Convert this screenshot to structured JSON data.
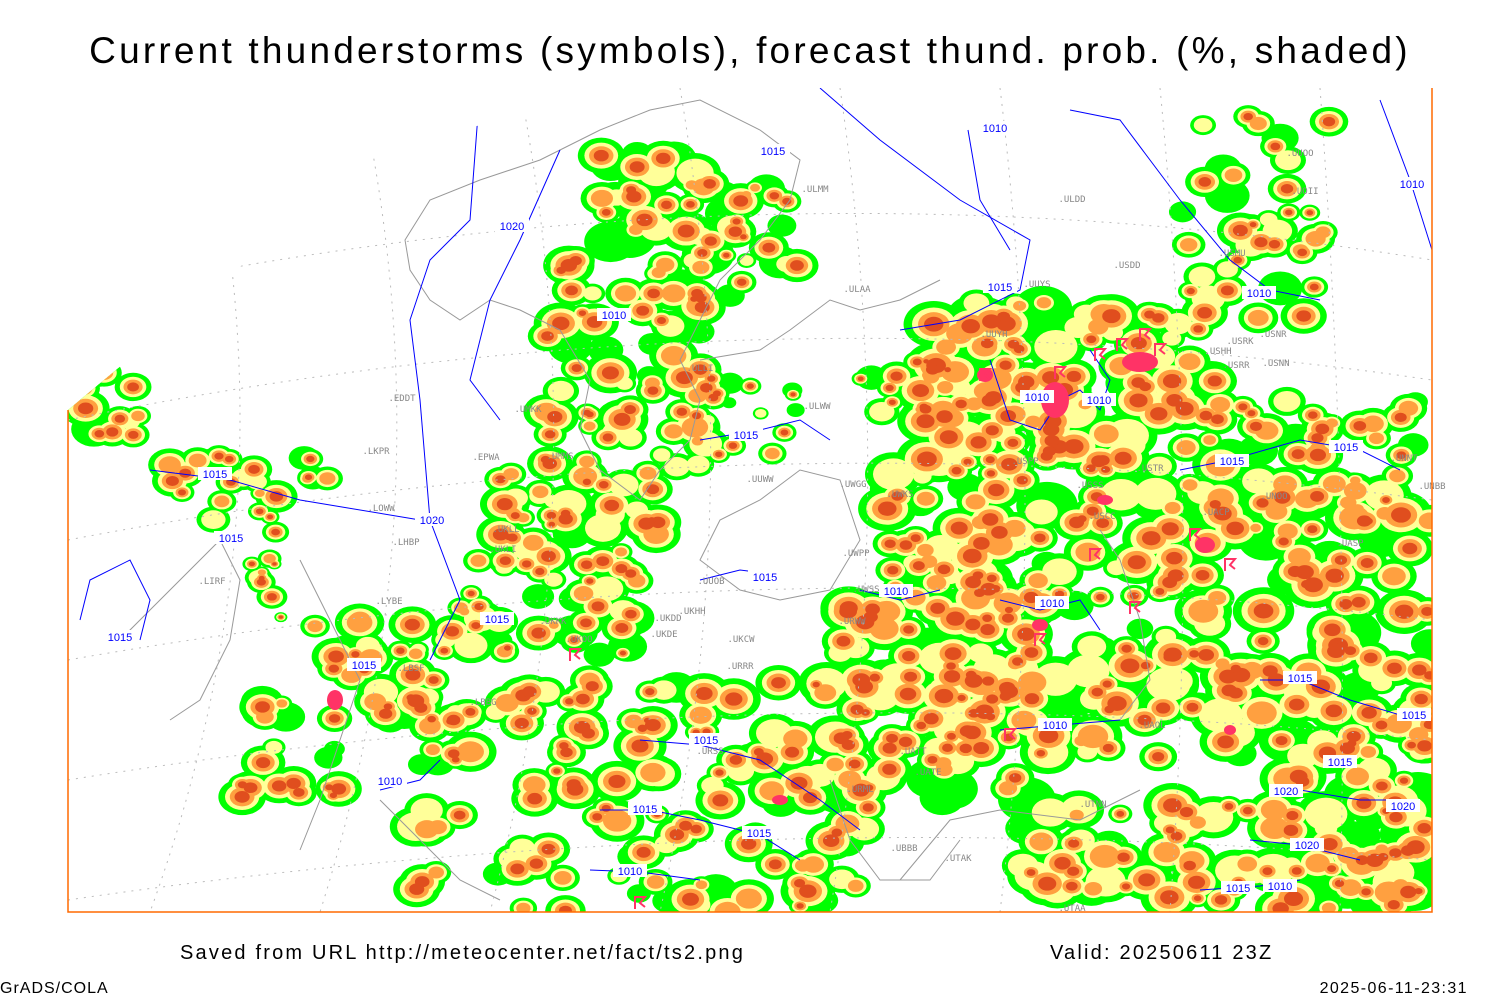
{
  "title": "Current thunderstorms (symbols), forecast thund. prob. (%, shaded)",
  "footer": {
    "source": "Saved from URL http://meteocenter.net/fact/ts2.png",
    "valid": "Valid: 20250611 23Z",
    "software": "GrADS/COLA",
    "timestamp": "2025-06-11-23:31"
  },
  "colors": {
    "prob_low": "#00ff00",
    "prob_mid": "#ffff99",
    "prob_high": "#ffa040",
    "prob_very_high": "#e04e1e",
    "thunderstorm_symbol": "#ff3366",
    "isobar": "#0000ff",
    "coastline": "#999999",
    "station_label": "#888888",
    "frame": "#ff6a00"
  },
  "isobar_labels": [
    "1010",
    "1015",
    "1020",
    "1010",
    "1015",
    "1010",
    "1010",
    "1010",
    "1010",
    "1015",
    "1015",
    "1015",
    "1015",
    "1020",
    "1015",
    "1015",
    "1015",
    "1010",
    "1010",
    "1015",
    "1015",
    "1015",
    "1010",
    "1010",
    "1015",
    "1015",
    "1015",
    "1020",
    "1020",
    "1020",
    "1015",
    "1015",
    "1010",
    "1015",
    "1010"
  ],
  "stations": [
    "ULMM",
    "ULDD",
    "UUYS",
    "USDD",
    "USMU",
    "UUOO",
    "UOII",
    "ULAA",
    "ULLI",
    "ULWW",
    "EDDT",
    "LKPR",
    "EPWA",
    "UMKK",
    "UMMS",
    "LOWW",
    "LHBP",
    "UKLL",
    "UKLI",
    "LIRF",
    "LYBE",
    "UKKK",
    "UKOO",
    "UKDD",
    "UKHH",
    "UKDE",
    "UKCW",
    "URRR",
    "LBSF",
    "LBBG",
    "UUWW",
    "UWGG",
    "UWKS",
    "UUOB",
    "UWPP",
    "UWSS",
    "URWW",
    "UATT",
    "UATE",
    "URML",
    "UBBB",
    "UTAK",
    "UTNN",
    "UAOL",
    "USSS",
    "USTR",
    "UACP",
    "UNOO",
    "UASP",
    "UNNT",
    "UNBB",
    "USRR",
    "USNN",
    "USNR",
    "USRK",
    "USHH",
    "UUYH",
    "USPP",
    "USCC",
    "UTAA",
    "URSS"
  ]
}
